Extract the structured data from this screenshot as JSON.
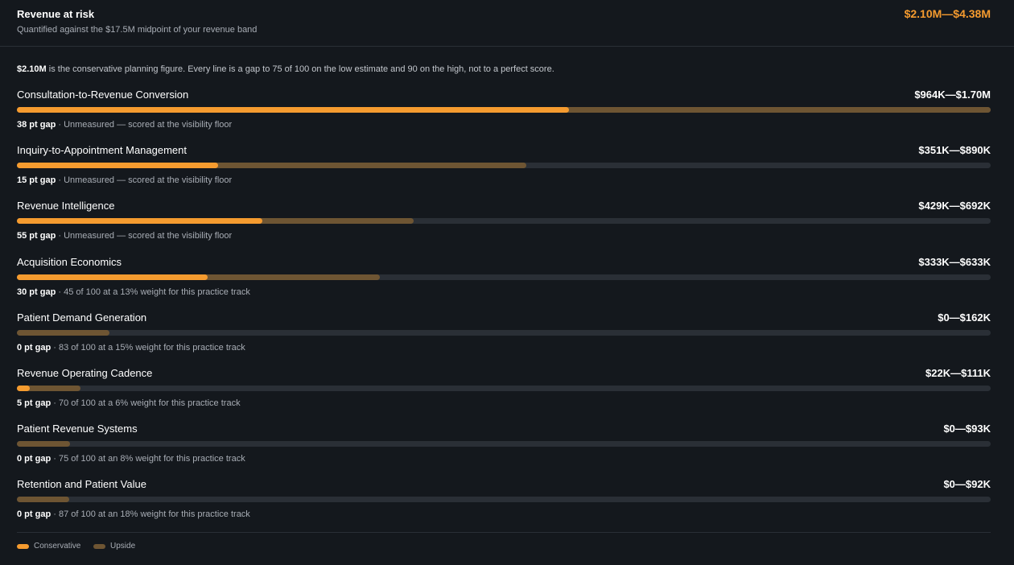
{
  "header": {
    "title": "Revenue at risk",
    "subtitle": "Quantified against the $17.5M midpoint of your revenue band",
    "total": "$2.10M—$4.38M"
  },
  "intro": {
    "figure": "$2.10M",
    "text": "is the conservative planning figure. Every line is a gap to 75 of 100 on the low estimate and 90 on the high, not to a perfect score."
  },
  "rows": [
    {
      "name": "Consultation-to-Revenue Conversion",
      "range": "$964K—$1.70M",
      "low": 964000,
      "high": 1700000,
      "gap": "38 pt gap",
      "note": "· Unmeasured — scored at the visibility floor"
    },
    {
      "name": "Inquiry-to-Appointment Management",
      "range": "$351K—$890K",
      "low": 351000,
      "high": 890000,
      "gap": "15 pt gap",
      "note": "· Unmeasured — scored at the visibility floor"
    },
    {
      "name": "Revenue Intelligence",
      "range": "$429K—$692K",
      "low": 429000,
      "high": 692000,
      "gap": "55 pt gap",
      "note": "· Unmeasured — scored at the visibility floor"
    },
    {
      "name": "Acquisition Economics",
      "range": "$333K—$633K",
      "low": 333000,
      "high": 633000,
      "gap": "30 pt gap",
      "note": "· 45 of 100 at a 13% weight for this practice track"
    },
    {
      "name": "Patient Demand Generation",
      "range": "$0—$162K",
      "low": 0,
      "high": 162000,
      "gap": "0 pt gap",
      "note": "· 83 of 100 at a 15% weight for this practice track"
    },
    {
      "name": "Revenue Operating Cadence",
      "range": "$22K—$111K",
      "low": 22000,
      "high": 111000,
      "gap": "5 pt gap",
      "note": "· 70 of 100 at a 6% weight for this practice track"
    },
    {
      "name": "Patient Revenue Systems",
      "range": "$0—$93K",
      "low": 0,
      "high": 93000,
      "gap": "0 pt gap",
      "note": "· 75 of 100 at an 8% weight for this practice track"
    },
    {
      "name": "Retention and Patient Value",
      "range": "$0—$92K",
      "low": 0,
      "high": 92000,
      "gap": "0 pt gap",
      "note": "· 87 of 100 at an 18% weight for this practice track"
    }
  ],
  "legend": [
    {
      "name": "Conservative",
      "color": "#f59b2f"
    },
    {
      "name": "Upside",
      "color": "#6e5533"
    }
  ]
}
